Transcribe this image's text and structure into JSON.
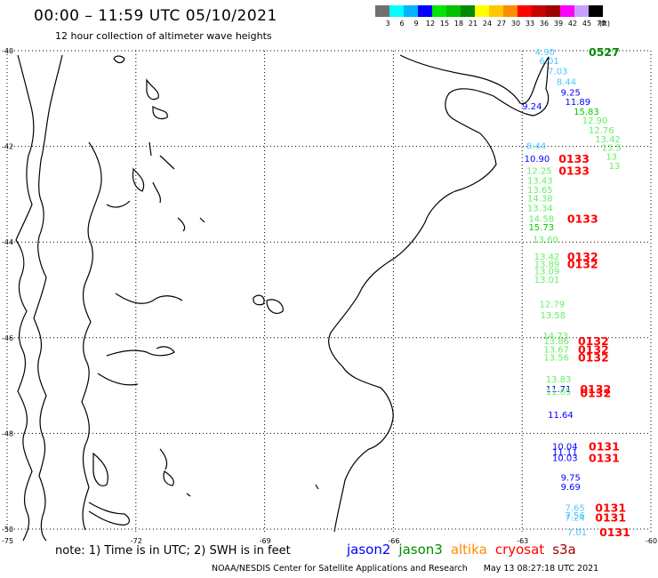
{
  "header": {
    "title": "00:00 – 11:59 UTC 05/10/2021",
    "subtitle": "12 hour collection of altimeter wave heights"
  },
  "colorbar": {
    "unit": "(ft)",
    "bins": [
      {
        "label": "3",
        "color": "#707070"
      },
      {
        "label": "6",
        "color": "#00ffff"
      },
      {
        "label": "9",
        "color": "#00b4ff"
      },
      {
        "label": "12",
        "color": "#0000ff"
      },
      {
        "label": "15",
        "color": "#00e600"
      },
      {
        "label": "18",
        "color": "#00c000"
      },
      {
        "label": "21",
        "color": "#008c00"
      },
      {
        "label": "24",
        "color": "#ffff00"
      },
      {
        "label": "27",
        "color": "#ffc800"
      },
      {
        "label": "30",
        "color": "#ff8c00"
      },
      {
        "label": "33",
        "color": "#ff0000"
      },
      {
        "label": "36",
        "color": "#c80000"
      },
      {
        "label": "39",
        "color": "#a00000"
      },
      {
        "label": "42",
        "color": "#ff00ff"
      },
      {
        "label": "45",
        "color": "#c8a0ff"
      },
      {
        "label": "70",
        "color": "#000000"
      }
    ]
  },
  "axes": {
    "lat_labels": [
      "-40",
      "-42",
      "-44",
      "-46",
      "-48",
      "-50"
    ],
    "lon_labels": [
      "-75",
      "-72",
      "-69",
      "-66",
      "-63",
      "-60"
    ]
  },
  "observations": [
    {
      "v": "4.90",
      "c": "#4dc7ff",
      "lon": -62.7,
      "lat": -40.02
    },
    {
      "v": "6.01",
      "c": "#4dc7ff",
      "lon": -62.6,
      "lat": -40.2
    },
    {
      "v": "7.03",
      "c": "#4dc7ff",
      "lon": -62.4,
      "lat": -40.42
    },
    {
      "v": "8.44",
      "c": "#4dc7ff",
      "lon": -62.2,
      "lat": -40.64
    },
    {
      "v": "9.25",
      "c": "#0000ff",
      "lon": -62.1,
      "lat": -40.86
    },
    {
      "v": "11.89",
      "c": "#0000ff",
      "lon": -62.0,
      "lat": -41.06
    },
    {
      "v": "15.83",
      "c": "#00cc00",
      "lon": -61.8,
      "lat": -41.26
    },
    {
      "v": "12.90",
      "c": "#66ee66",
      "lon": -61.6,
      "lat": -41.45
    },
    {
      "v": "12.76",
      "c": "#66ee66",
      "lon": -61.45,
      "lat": -41.65
    },
    {
      "v": "13.42",
      "c": "#66ee66",
      "lon": -61.3,
      "lat": -41.84
    },
    {
      "v": "13.5",
      "c": "#66ee66",
      "lon": -61.15,
      "lat": -42.02
    },
    {
      "v": "13",
      "c": "#66ee66",
      "lon": -61.05,
      "lat": -42.2
    },
    {
      "v": "13",
      "c": "#66ee66",
      "lon": -60.98,
      "lat": -42.4
    },
    {
      "v": "9.24",
      "c": "#0000ff",
      "lon": -63.0,
      "lat": -41.15
    },
    {
      "v": "8.44",
      "c": "#4dc7ff",
      "lon": -62.9,
      "lat": -41.98
    },
    {
      "v": "10.90",
      "c": "#0000ff",
      "lon": -62.95,
      "lat": -42.25
    },
    {
      "v": "12.25",
      "c": "#66ee66",
      "lon": -62.9,
      "lat": -42.5
    },
    {
      "v": "13.43",
      "c": "#66ee66",
      "lon": -62.88,
      "lat": -42.7
    },
    {
      "v": "13.65",
      "c": "#66ee66",
      "lon": -62.88,
      "lat": -42.9
    },
    {
      "v": "14.38",
      "c": "#66ee66",
      "lon": -62.88,
      "lat": -43.08
    },
    {
      "v": "13.34",
      "c": "#66ee66",
      "lon": -62.88,
      "lat": -43.28
    },
    {
      "v": "14.58",
      "c": "#66ee66",
      "lon": -62.85,
      "lat": -43.5
    },
    {
      "v": "15.73",
      "c": "#00cc00",
      "lon": -62.85,
      "lat": -43.68
    },
    {
      "v": "13.60",
      "c": "#66ee66",
      "lon": -62.75,
      "lat": -43.94
    },
    {
      "v": "13.42",
      "c": "#66ee66",
      "lon": -62.72,
      "lat": -44.29
    },
    {
      "v": "13.89",
      "c": "#66ee66",
      "lon": -62.72,
      "lat": -44.45
    },
    {
      "v": "13.09",
      "c": "#66ee66",
      "lon": -62.72,
      "lat": -44.6
    },
    {
      "v": "13.01",
      "c": "#66ee66",
      "lon": -62.72,
      "lat": -44.78
    },
    {
      "v": "12.79",
      "c": "#66ee66",
      "lon": -62.6,
      "lat": -45.29
    },
    {
      "v": "13.58",
      "c": "#66ee66",
      "lon": -62.58,
      "lat": -45.52
    },
    {
      "v": "14.73",
      "c": "#66ee66",
      "lon": -62.52,
      "lat": -45.95
    },
    {
      "v": "13.86",
      "c": "#66ee66",
      "lon": -62.5,
      "lat": -46.06
    },
    {
      "v": "13.67",
      "c": "#66ee66",
      "lon": -62.5,
      "lat": -46.24
    },
    {
      "v": "13.56",
      "c": "#66ee66",
      "lon": -62.5,
      "lat": -46.4
    },
    {
      "v": "13.83",
      "c": "#66ee66",
      "lon": -62.45,
      "lat": -46.86
    },
    {
      "v": "11.71",
      "c": "#0000ff",
      "lon": -62.45,
      "lat": -47.06
    },
    {
      "v": "11.65",
      "c": "#66ee66",
      "lon": -62.45,
      "lat": -47.12
    },
    {
      "v": "11.64",
      "c": "#0000ff",
      "lon": -62.4,
      "lat": -47.6
    },
    {
      "v": "10.04",
      "c": "#0000ff",
      "lon": -62.3,
      "lat": -48.26
    },
    {
      "v": "11.11",
      "c": "#0000ff",
      "lon": -62.3,
      "lat": -48.38
    },
    {
      "v": "10.03",
      "c": "#0000ff",
      "lon": -62.3,
      "lat": -48.5
    },
    {
      "v": "9.75",
      "c": "#0000ff",
      "lon": -62.1,
      "lat": -48.91
    },
    {
      "v": "9.69",
      "c": "#0000ff",
      "lon": -62.1,
      "lat": -49.11
    },
    {
      "v": "7.65",
      "c": "#4dc7ff",
      "lon": -62.0,
      "lat": -49.54
    },
    {
      "v": "7.56",
      "c": "#4dc7ff",
      "lon": -62.0,
      "lat": -49.7
    },
    {
      "v": "7.24",
      "c": "#4dc7ff",
      "lon": -62.0,
      "lat": -49.75
    },
    {
      "v": "7.01",
      "c": "#4dc7ff",
      "lon": -61.95,
      "lat": -50.06
    }
  ],
  "passes": [
    {
      "t": "0527",
      "c": "#008c00",
      "lon": -61.45,
      "lat": -40.02
    },
    {
      "t": "0133",
      "c": "#ff0000",
      "lon": -62.15,
      "lat": -42.25
    },
    {
      "t": "0133",
      "c": "#ff0000",
      "lon": -62.15,
      "lat": -42.5
    },
    {
      "t": "0133",
      "c": "#ff0000",
      "lon": -61.95,
      "lat": -43.5
    },
    {
      "t": "0132",
      "c": "#ff0000",
      "lon": -61.95,
      "lat": -44.29
    },
    {
      "t": "0132",
      "c": "#ff0000",
      "lon": -61.95,
      "lat": -44.45
    },
    {
      "t": "0132",
      "c": "#ff0000",
      "lon": -61.7,
      "lat": -46.06
    },
    {
      "t": "0132",
      "c": "#ff0000",
      "lon": -61.7,
      "lat": -46.24
    },
    {
      "t": "0132",
      "c": "#ff0000",
      "lon": -61.7,
      "lat": -46.4
    },
    {
      "t": "0132",
      "c": "#ff0000",
      "lon": -61.65,
      "lat": -47.06
    },
    {
      "t": "0132",
      "c": "#ff0000",
      "lon": -61.65,
      "lat": -47.15
    },
    {
      "t": "0131",
      "c": "#ff0000",
      "lon": -61.45,
      "lat": -48.26
    },
    {
      "t": "0131",
      "c": "#ff0000",
      "lon": -61.45,
      "lat": -48.5
    },
    {
      "t": "0131",
      "c": "#ff0000",
      "lon": -61.3,
      "lat": -49.54
    },
    {
      "t": "0131",
      "c": "#ff0000",
      "lon": -61.3,
      "lat": -49.75
    },
    {
      "t": "0131",
      "c": "#ff0000",
      "lon": -61.2,
      "lat": -50.06
    }
  ],
  "footer": {
    "note": "note:  1) Time is in UTC;  2) SWH is in feet",
    "satellites": [
      {
        "name": "jason2",
        "color": "#0000ff"
      },
      {
        "name": "jason3",
        "color": "#008c00"
      },
      {
        "name": "altika",
        "color": "#ff8c00"
      },
      {
        "name": "cryosat",
        "color": "#ff0000"
      },
      {
        "name": "s3a",
        "color": "#a00000"
      }
    ],
    "credit": "NOAA/NESDIS Center for Satellite Applications and Research",
    "timestamp": "May 13 08:27:18 UTC 2021"
  }
}
